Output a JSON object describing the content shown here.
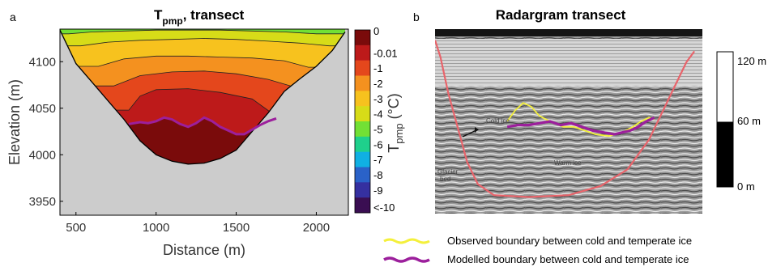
{
  "chart_data": [
    {
      "type": "contour",
      "panel_label": "a",
      "title_main": "T",
      "title_sub": "pmp",
      "title_rest": ", transect",
      "xlabel": "Distance (m)",
      "ylabel": "Elevation (m)",
      "xlim": [
        400,
        2200
      ],
      "ylim": [
        3935,
        4135
      ],
      "xticks": [
        "500",
        "1000",
        "1500",
        "2000"
      ],
      "yticks": [
        "3950",
        "4000",
        "4050",
        "4100"
      ],
      "background_color": "#cccccc",
      "bed": [
        [
          400,
          4134
        ],
        [
          500,
          4098
        ],
        [
          600,
          4078
        ],
        [
          700,
          4058
        ],
        [
          800,
          4038
        ],
        [
          900,
          4015
        ],
        [
          1000,
          4000
        ],
        [
          1100,
          3993
        ],
        [
          1200,
          3990
        ],
        [
          1300,
          3991
        ],
        [
          1400,
          3996
        ],
        [
          1500,
          4005
        ],
        [
          1600,
          4025
        ],
        [
          1700,
          4045
        ],
        [
          1800,
          4068
        ],
        [
          1900,
          4082
        ],
        [
          2000,
          4095
        ],
        [
          2100,
          4112
        ],
        [
          2180,
          4132
        ]
      ],
      "isotherms": [
        {
          "level": "-1",
          "points": [
            [
              830,
              4048
            ],
            [
              900,
              4063
            ],
            [
              1000,
              4070
            ],
            [
              1200,
              4071
            ],
            [
              1400,
              4067
            ],
            [
              1600,
              4060
            ],
            [
              1720,
              4045
            ],
            [
              1780,
              4038
            ]
          ]
        },
        {
          "level": "-2",
          "points": [
            [
              735,
              4074
            ],
            [
              900,
              4085
            ],
            [
              1100,
              4089
            ],
            [
              1300,
              4090
            ],
            [
              1500,
              4087
            ],
            [
              1700,
              4081
            ],
            [
              1840,
              4074
            ]
          ]
        },
        {
          "level": "-3",
          "points": [
            [
              640,
              4095
            ],
            [
              800,
              4103
            ],
            [
              1000,
              4106
            ],
            [
              1200,
              4106
            ],
            [
              1400,
              4105
            ],
            [
              1600,
              4104
            ],
            [
              1800,
              4101
            ],
            [
              1950,
              4094
            ]
          ]
        },
        {
          "level": "-4",
          "points": [
            [
              530,
              4117
            ],
            [
              700,
              4121
            ],
            [
              900,
              4123
            ],
            [
              1100,
              4124
            ],
            [
              1300,
              4125
            ],
            [
              1500,
              4124
            ],
            [
              1700,
              4122
            ],
            [
              1900,
              4120
            ],
            [
              2080,
              4117
            ]
          ]
        },
        {
          "level": "-5",
          "points": [
            [
              455,
              4130
            ],
            [
              600,
              4132
            ],
            [
              800,
              4133
            ],
            [
              1000,
              4134
            ],
            [
              1200,
              4134
            ],
            [
              1400,
              4134
            ],
            [
              1600,
              4133
            ],
            [
              1800,
              4132
            ],
            [
              2000,
              4130
            ],
            [
              2150,
              4130
            ]
          ]
        }
      ],
      "modelled_boundary": [
        [
          830,
          4033
        ],
        [
          900,
          4035
        ],
        [
          950,
          4034
        ],
        [
          1000,
          4036
        ],
        [
          1050,
          4040
        ],
        [
          1100,
          4038
        ],
        [
          1150,
          4033
        ],
        [
          1200,
          4030
        ],
        [
          1250,
          4034
        ],
        [
          1300,
          4040
        ],
        [
          1350,
          4036
        ],
        [
          1400,
          4030
        ],
        [
          1450,
          4026
        ],
        [
          1500,
          4022
        ],
        [
          1550,
          4022
        ],
        [
          1600,
          4027
        ],
        [
          1650,
          4032
        ],
        [
          1700,
          4036
        ],
        [
          1750,
          4039
        ]
      ],
      "fills": {
        "0": "#7a0b0b",
        "-0.01": "#bd1a1a",
        "-1": "#e4471c",
        "-2": "#f4911f",
        "-3": "#f7c21e",
        "-4": "#d7dc18",
        "-5": "#72e035"
      },
      "colorbar": {
        "label_main": "T",
        "label_sub": "pmp",
        "label_rest": " (°C)",
        "labels": [
          "0",
          "-0.01",
          "-1",
          "-2",
          "-3",
          "-4",
          "-5",
          "-6",
          "-7",
          "-8",
          "-9",
          "<-10"
        ],
        "colors": [
          "#7a0b0b",
          "#bd1a1a",
          "#e4471c",
          "#f4911f",
          "#f7c21e",
          "#d7dc18",
          "#72e035",
          "#1fd08c",
          "#10b0e3",
          "#2a62c8",
          "#3530a0",
          "#3a0e52"
        ]
      }
    },
    {
      "type": "image",
      "panel_label": "b",
      "title": "Radargram transect",
      "annotations": [
        "Cold ice",
        "Warm ice",
        "Glacier",
        "bed"
      ],
      "scale_bar": {
        "labels": [
          "120 m",
          "60 m",
          "0 m"
        ]
      },
      "glacier_bed_line": [
        [
          0,
          0.06
        ],
        [
          0.02,
          0.15
        ],
        [
          0.05,
          0.35
        ],
        [
          0.09,
          0.56
        ],
        [
          0.12,
          0.72
        ],
        [
          0.16,
          0.84
        ],
        [
          0.22,
          0.9
        ],
        [
          0.35,
          0.91
        ],
        [
          0.5,
          0.9
        ],
        [
          0.62,
          0.85
        ],
        [
          0.72,
          0.76
        ],
        [
          0.8,
          0.6
        ],
        [
          0.85,
          0.45
        ],
        [
          0.9,
          0.3
        ],
        [
          0.94,
          0.18
        ],
        [
          0.97,
          0.12
        ]
      ],
      "observed_boundary": [
        [
          0.27,
          0.5
        ],
        [
          0.3,
          0.44
        ],
        [
          0.33,
          0.4
        ],
        [
          0.36,
          0.42
        ],
        [
          0.39,
          0.47
        ],
        [
          0.43,
          0.5
        ],
        [
          0.48,
          0.53
        ],
        [
          0.52,
          0.53
        ],
        [
          0.56,
          0.55
        ],
        [
          0.6,
          0.57
        ],
        [
          0.65,
          0.58
        ],
        [
          0.7,
          0.56
        ],
        [
          0.74,
          0.53
        ],
        [
          0.77,
          0.5
        ],
        [
          0.8,
          0.48
        ],
        [
          0.82,
          0.49
        ]
      ],
      "modelled_boundary": [
        [
          0.27,
          0.53
        ],
        [
          0.31,
          0.52
        ],
        [
          0.35,
          0.52
        ],
        [
          0.39,
          0.51
        ],
        [
          0.43,
          0.5
        ],
        [
          0.47,
          0.52
        ],
        [
          0.51,
          0.51
        ],
        [
          0.55,
          0.53
        ],
        [
          0.59,
          0.55
        ],
        [
          0.63,
          0.56
        ],
        [
          0.67,
          0.57
        ],
        [
          0.7,
          0.56
        ],
        [
          0.73,
          0.55
        ],
        [
          0.76,
          0.53
        ],
        [
          0.79,
          0.5
        ],
        [
          0.82,
          0.48
        ]
      ]
    }
  ],
  "legend": [
    {
      "label": "Observed boundary between cold and temperate ice",
      "color": "#f4f03c"
    },
    {
      "label": "Modelled boundary between cold and temperate ice",
      "color": "#9c1f9c"
    }
  ]
}
